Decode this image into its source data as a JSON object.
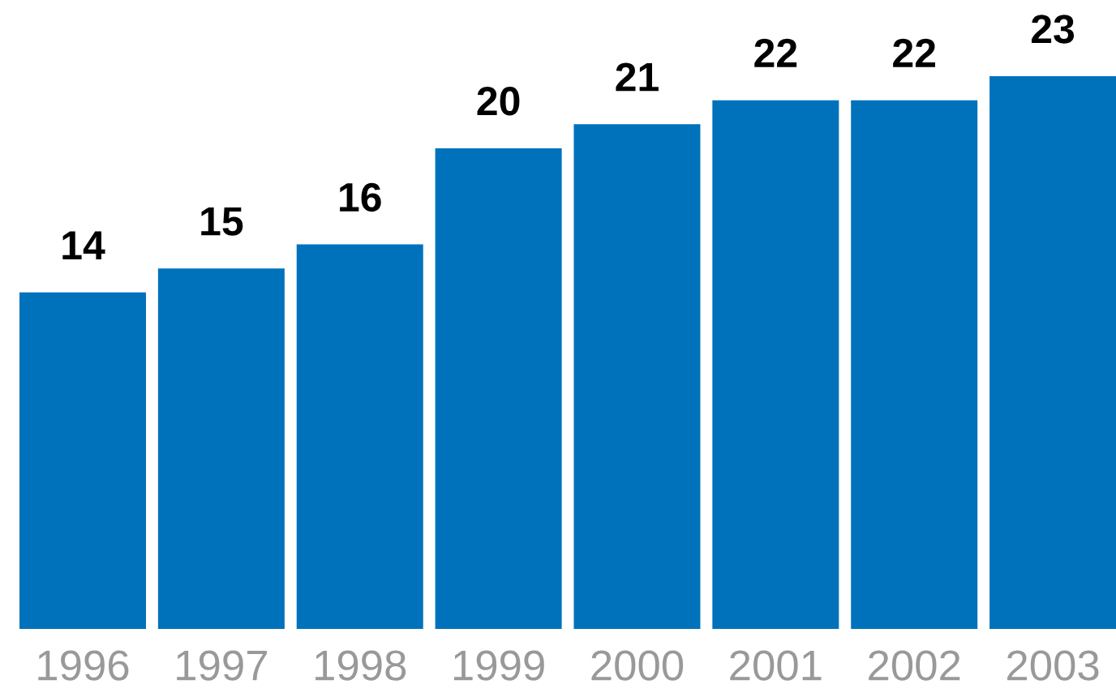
{
  "chart_data": {
    "type": "bar",
    "categories": [
      "1996",
      "1997",
      "1998",
      "1999",
      "2000",
      "2001",
      "2002",
      "2003"
    ],
    "values": [
      14,
      15,
      16,
      20,
      21,
      22,
      22,
      23
    ],
    "color": "#0072bb",
    "data_labels": true,
    "tick_labels": "x"
  }
}
